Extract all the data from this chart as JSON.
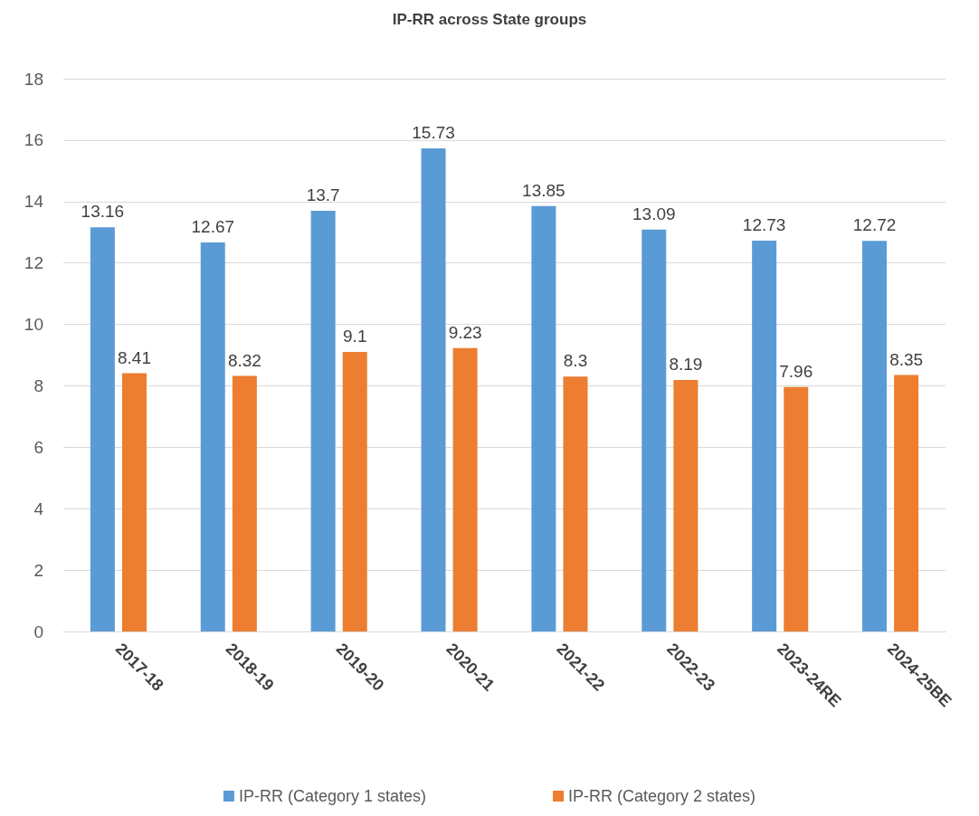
{
  "chart_data": {
    "type": "bar",
    "title": "IP-RR across State groups",
    "categories": [
      "2017-18",
      "2018-19",
      "2019-20",
      "2020-21",
      "2021-22",
      "2022-23",
      "2023-24RE",
      "2024-25BE"
    ],
    "series": [
      {
        "name": "IP-RR (Category 1 states)",
        "color": "#5b9bd5",
        "values": [
          13.16,
          12.67,
          13.7,
          15.73,
          13.85,
          13.09,
          12.73,
          12.72
        ]
      },
      {
        "name": "IP-RR (Category 2 states)",
        "color": "#ed7d31",
        "values": [
          8.41,
          8.32,
          9.1,
          9.23,
          8.3,
          8.19,
          7.96,
          8.35
        ]
      }
    ],
    "ylim": [
      0,
      18
    ],
    "yticks": [
      0,
      2,
      4,
      6,
      8,
      10,
      12,
      14,
      16,
      18
    ],
    "grid": "y",
    "legend": "bottom",
    "data_labels": true
  }
}
